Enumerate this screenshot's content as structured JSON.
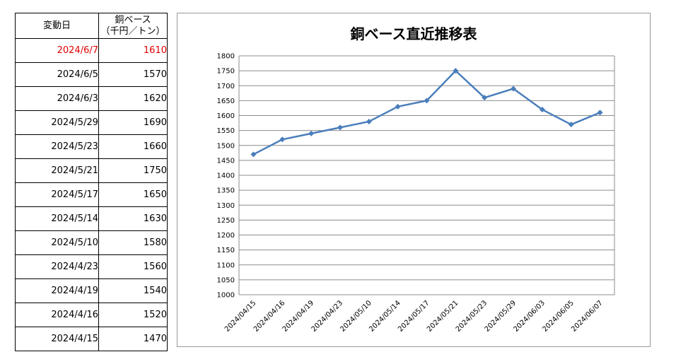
{
  "table": {
    "header": {
      "date": "変動日",
      "price_line1": "銅ベース",
      "price_line2": "（千円／トン）"
    },
    "rows": [
      {
        "date": "2024/6/7",
        "price": "1610",
        "highlight": true
      },
      {
        "date": "2024/6/5",
        "price": "1570"
      },
      {
        "date": "2024/6/3",
        "price": "1620"
      },
      {
        "date": "2024/5/29",
        "price": "1690"
      },
      {
        "date": "2024/5/23",
        "price": "1660"
      },
      {
        "date": "2024/5/21",
        "price": "1750"
      },
      {
        "date": "2024/5/17",
        "price": "1650"
      },
      {
        "date": "2024/5/14",
        "price": "1630"
      },
      {
        "date": "2024/5/10",
        "price": "1580"
      },
      {
        "date": "2024/4/23",
        "price": "1560"
      },
      {
        "date": "2024/4/19",
        "price": "1540"
      },
      {
        "date": "2024/4/16",
        "price": "1520"
      },
      {
        "date": "2024/4/15",
        "price": "1470"
      }
    ],
    "highlight_color": "#e00000"
  },
  "chart_data": {
    "type": "line",
    "title": "銅ベース直近推移表",
    "categories": [
      "2024/04/15",
      "2024/04/16",
      "2024/04/19",
      "2024/04/23",
      "2024/05/10",
      "2024/05/14",
      "2024/05/17",
      "2024/05/21",
      "2024/05/23",
      "2024/05/29",
      "2024/06/03",
      "2024/06/05",
      "2024/06/07"
    ],
    "series": [
      {
        "values": [
          1470,
          1520,
          1540,
          1560,
          1580,
          1630,
          1650,
          1750,
          1660,
          1690,
          1620,
          1570,
          1610
        ],
        "color": "#4a7ebb"
      }
    ],
    "ylim": [
      1000,
      1800
    ],
    "ystep": 50,
    "grid": true,
    "legend": "none",
    "marker": "diamond"
  }
}
